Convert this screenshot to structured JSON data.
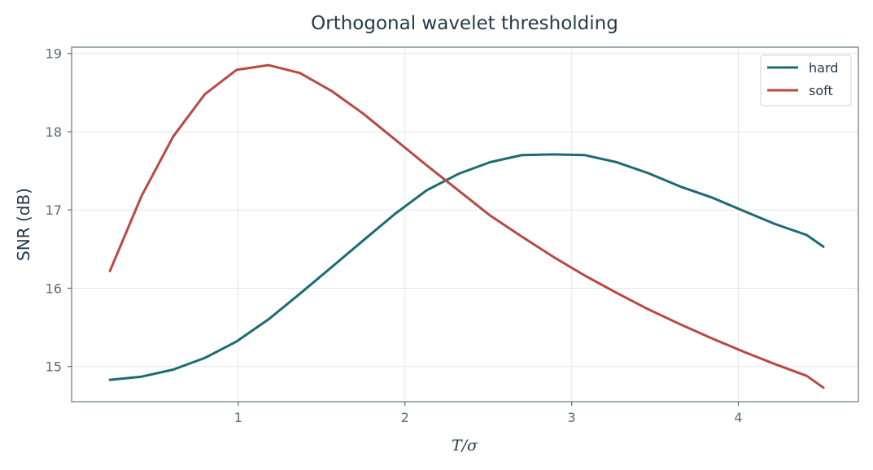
{
  "chart_data": {
    "type": "line",
    "title": "Orthogonal wavelet thresholding",
    "xlabel": "T/σ",
    "ylabel": "SNR (dB)",
    "xlim": [
      0.0,
      4.72
    ],
    "ylim": [
      14.55,
      19.08
    ],
    "xticks": [
      1,
      2,
      3,
      4
    ],
    "yticks": [
      15,
      16,
      17,
      18,
      19
    ],
    "grid": true,
    "legend_position": "top-right",
    "x": [
      0.23,
      0.42,
      0.61,
      0.8,
      0.99,
      1.18,
      1.37,
      1.56,
      1.75,
      1.94,
      2.13,
      2.32,
      2.51,
      2.7,
      2.89,
      3.08,
      3.27,
      3.46,
      3.65,
      3.84,
      4.03,
      4.22,
      4.41,
      4.51
    ],
    "series": [
      {
        "name": "hard",
        "color": "#1c6b73",
        "values": [
          14.83,
          14.87,
          14.96,
          15.11,
          15.32,
          15.6,
          15.93,
          16.27,
          16.61,
          16.95,
          17.25,
          17.46,
          17.61,
          17.7,
          17.71,
          17.7,
          17.61,
          17.47,
          17.3,
          17.16,
          16.99,
          16.82,
          16.68,
          16.53
        ]
      },
      {
        "name": "soft",
        "color": "#b84a42",
        "values": [
          16.22,
          17.18,
          17.94,
          18.48,
          18.79,
          18.85,
          18.75,
          18.52,
          18.23,
          17.9,
          17.57,
          17.25,
          16.93,
          16.66,
          16.4,
          16.16,
          15.94,
          15.73,
          15.54,
          15.36,
          15.19,
          15.03,
          14.88,
          14.73
        ]
      }
    ]
  }
}
